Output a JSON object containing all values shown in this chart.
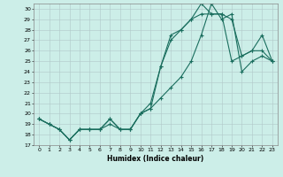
{
  "xlabel": "Humidex (Indice chaleur)",
  "bg_color": "#cceee8",
  "grid_color": "#b0c8c8",
  "line_color": "#1a6e5e",
  "xlim": [
    -0.5,
    23.5
  ],
  "ylim": [
    17,
    30.5
  ],
  "yticks": [
    17,
    18,
    19,
    20,
    21,
    22,
    23,
    24,
    25,
    26,
    27,
    28,
    29,
    30
  ],
  "xticks": [
    0,
    1,
    2,
    3,
    4,
    5,
    6,
    7,
    8,
    9,
    10,
    11,
    12,
    13,
    14,
    15,
    16,
    17,
    18,
    19,
    20,
    21,
    22,
    23
  ],
  "line1_x": [
    0,
    1,
    2,
    3,
    4,
    5,
    6,
    7,
    8,
    9,
    10,
    11,
    12,
    13,
    14,
    15,
    16,
    17,
    18,
    19,
    20,
    21,
    22,
    23
  ],
  "line1_y": [
    19.5,
    19.0,
    18.5,
    17.5,
    18.5,
    18.5,
    18.5,
    19.5,
    18.5,
    18.5,
    20.0,
    21.0,
    24.5,
    27.5,
    28.0,
    29.0,
    30.5,
    29.5,
    29.5,
    29.0,
    25.5,
    26.0,
    27.5,
    25.0
  ],
  "line2_x": [
    0,
    1,
    2,
    3,
    4,
    5,
    6,
    7,
    8,
    9,
    10,
    11,
    12,
    13,
    14,
    15,
    16,
    17,
    18,
    19,
    20,
    21,
    22,
    23
  ],
  "line2_y": [
    19.5,
    19.0,
    18.5,
    17.5,
    18.5,
    18.5,
    18.5,
    19.5,
    18.5,
    18.5,
    20.0,
    20.5,
    24.5,
    27.0,
    28.0,
    29.0,
    29.5,
    29.5,
    29.5,
    25.0,
    25.5,
    26.0,
    26.0,
    25.0
  ],
  "line3_x": [
    0,
    1,
    2,
    3,
    4,
    5,
    6,
    7,
    8,
    9,
    10,
    11,
    12,
    13,
    14,
    15,
    16,
    17,
    18,
    19,
    20,
    21,
    22,
    23
  ],
  "line3_y": [
    19.5,
    19.0,
    18.5,
    17.5,
    18.5,
    18.5,
    18.5,
    19.0,
    18.5,
    18.5,
    20.0,
    20.5,
    21.5,
    22.5,
    23.5,
    25.0,
    27.5,
    30.5,
    29.0,
    29.5,
    24.0,
    25.0,
    25.5,
    25.0
  ]
}
